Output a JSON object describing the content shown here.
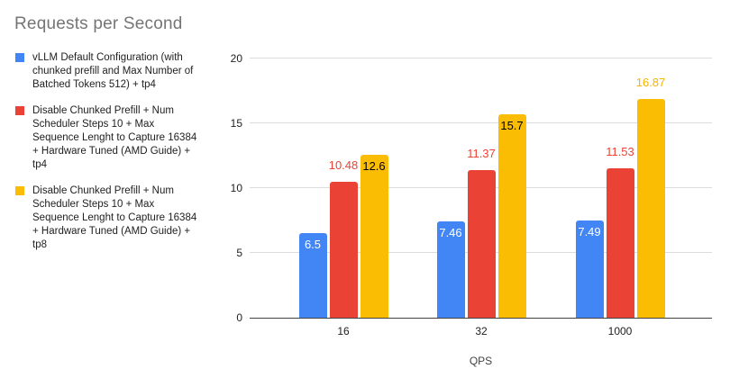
{
  "title": "Requests per Second",
  "legend": {
    "items": [
      {
        "label": "vLLM Default Configuration (with chunked prefill and Max Number of Batched Tokens 512) + tp4",
        "color": "#4285F4"
      },
      {
        "label": "Disable Chunked Prefill + Num Scheduler Steps 10 + Max Sequence Lenght to Capture 16384 + Hardware Tuned (AMD Guide) + tp4",
        "color": "#EA4335"
      },
      {
        "label": "Disable Chunked Prefill + Num Scheduler Steps 10 + Max Sequence Lenght to Capture 16384 + Hardware Tuned (AMD Guide) + tp8",
        "color": "#FBBC04"
      }
    ]
  },
  "chart_data": {
    "type": "bar",
    "title": "Requests per Second",
    "xlabel": "QPS",
    "ylabel": "",
    "categories": [
      "16",
      "32",
      "1000"
    ],
    "ylim": [
      0,
      20
    ],
    "yticks": [
      0,
      5,
      10,
      15,
      20
    ],
    "grid": true,
    "legend_position": "left",
    "series": [
      {
        "name": "vLLM Default Configuration (with chunked prefill and Max Number of Batched Tokens 512) + tp4",
        "color": "#4285F4",
        "values": [
          6.5,
          7.46,
          7.49
        ],
        "labels": [
          {
            "text": "6.5",
            "position": "inside",
            "color": "#ffffff"
          },
          {
            "text": "7.46",
            "position": "inside",
            "color": "#ffffff"
          },
          {
            "text": "7.49",
            "position": "inside",
            "color": "#ffffff"
          }
        ]
      },
      {
        "name": "Disable Chunked Prefill + Num Scheduler Steps 10 + Max Sequence Lenght to Capture 16384 + Hardware Tuned (AMD Guide) + tp4",
        "color": "#EA4335",
        "values": [
          10.48,
          11.37,
          11.53
        ],
        "labels": [
          {
            "text": "10.48",
            "position": "above",
            "color": "#EA4335"
          },
          {
            "text": "11.37",
            "position": "above",
            "color": "#EA4335"
          },
          {
            "text": "11.53",
            "position": "above",
            "color": "#EA4335"
          }
        ]
      },
      {
        "name": "Disable Chunked Prefill + Num Scheduler Steps 10 + Max Sequence Lenght to Capture 16384 + Hardware Tuned (AMD Guide) + tp8",
        "color": "#FBBC04",
        "values": [
          12.6,
          15.7,
          16.87
        ],
        "labels": [
          {
            "text": "12.6",
            "position": "inside",
            "color": "#000000"
          },
          {
            "text": "15.7",
            "position": "inside",
            "color": "#000000"
          },
          {
            "text": "16.87",
            "position": "above",
            "color": "#F4B400"
          }
        ]
      }
    ]
  }
}
